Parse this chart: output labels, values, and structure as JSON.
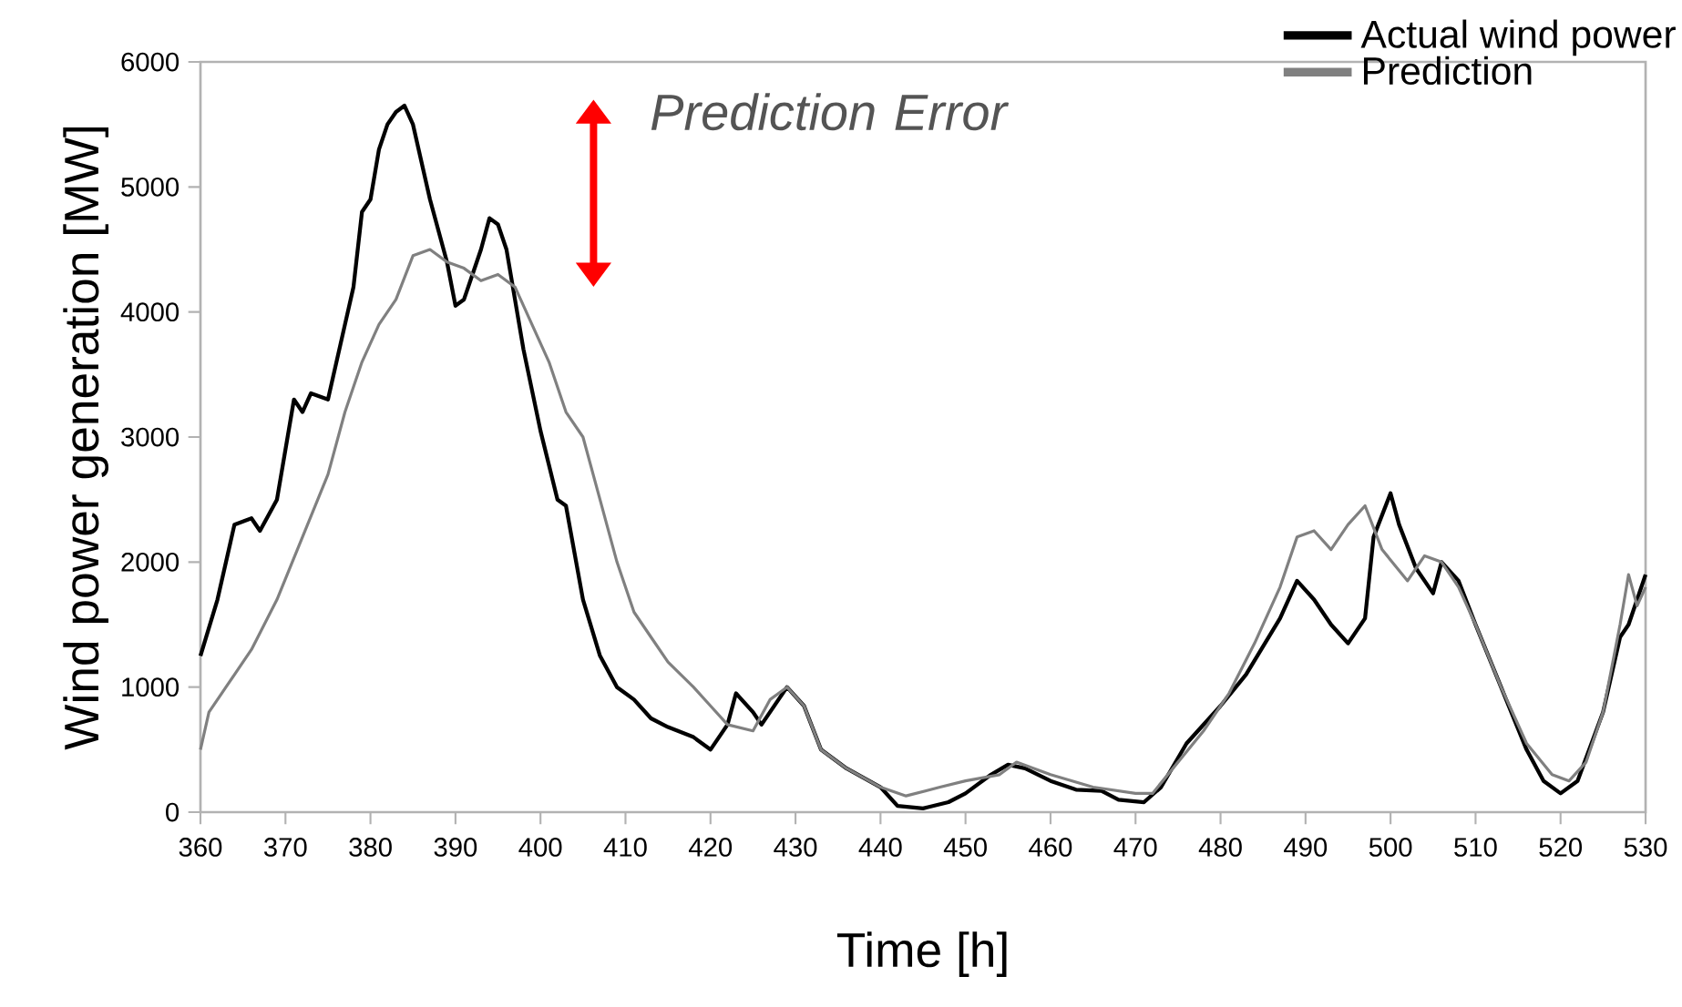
{
  "chart_data": {
    "type": "line",
    "xlabel": "Time [h]",
    "ylabel": "Wind power generation [MW]",
    "xlim": [
      360,
      530
    ],
    "ylim": [
      0,
      6000
    ],
    "xticks": [
      360,
      370,
      380,
      390,
      400,
      410,
      420,
      430,
      440,
      450,
      460,
      470,
      480,
      490,
      500,
      510,
      520,
      530
    ],
    "yticks": [
      0,
      1000,
      2000,
      3000,
      4000,
      5000,
      6000
    ],
    "grid": false,
    "legend": "top right",
    "annotations": [
      "Prediction Error"
    ],
    "series": [
      {
        "name": "Actual wind power",
        "color": "#000000",
        "x": [
          360,
          362,
          364,
          366,
          367,
          369,
          371,
          372,
          373,
          375,
          377,
          378,
          379,
          380,
          381,
          382,
          383,
          384,
          385,
          387,
          389,
          390,
          391,
          392,
          393,
          394,
          395,
          396,
          398,
          400,
          402,
          403,
          405,
          407,
          409,
          411,
          413,
          415,
          418,
          420,
          422,
          423,
          425,
          426,
          428,
          429,
          431,
          433,
          436,
          440,
          442,
          445,
          448,
          450,
          453,
          455,
          457,
          460,
          463,
          466,
          468,
          471,
          473,
          476,
          480,
          483,
          487,
          489,
          491,
          493,
          495,
          497,
          498,
          500,
          501,
          503,
          504,
          505,
          506,
          508,
          510,
          513,
          516,
          518,
          520,
          522,
          525,
          527,
          528,
          530
        ],
        "values": [
          1250,
          1700,
          2300,
          2350,
          2250,
          2500,
          3300,
          3200,
          3350,
          3300,
          3900,
          4200,
          4800,
          4900,
          5300,
          5500,
          5600,
          5650,
          5500,
          4900,
          4400,
          4050,
          4100,
          4300,
          4500,
          4750,
          4700,
          4500,
          3700,
          3050,
          2500,
          2450,
          1700,
          1250,
          1000,
          900,
          750,
          680,
          600,
          500,
          700,
          950,
          800,
          700,
          900,
          1000,
          850,
          500,
          350,
          200,
          50,
          30,
          80,
          150,
          300,
          380,
          350,
          250,
          180,
          170,
          100,
          80,
          200,
          550,
          850,
          1100,
          1550,
          1850,
          1700,
          1500,
          1350,
          1550,
          2200,
          2550,
          2300,
          1950,
          1850,
          1750,
          2000,
          1850,
          1500,
          1000,
          500,
          250,
          150,
          250,
          800,
          1400,
          1500,
          1900
        ]
      },
      {
        "name": "Prediction",
        "color": "#808080",
        "x": [
          360,
          361,
          363,
          366,
          369,
          372,
          375,
          377,
          379,
          381,
          383,
          385,
          387,
          389,
          391,
          393,
          395,
          397,
          399,
          401,
          403,
          405,
          407,
          409,
          411,
          413,
          415,
          418,
          420,
          422,
          425,
          427,
          429,
          431,
          433,
          436,
          440,
          443,
          447,
          450,
          454,
          456,
          460,
          465,
          470,
          472,
          475,
          478,
          481,
          484,
          487,
          489,
          491,
          493,
          495,
          497,
          499,
          502,
          504,
          506,
          508,
          510,
          513,
          516,
          519,
          521,
          523,
          525,
          527,
          528,
          529,
          530
        ],
        "values": [
          500,
          800,
          1000,
          1300,
          1700,
          2200,
          2700,
          3200,
          3600,
          3900,
          4100,
          4450,
          4500,
          4400,
          4350,
          4250,
          4300,
          4200,
          3900,
          3600,
          3200,
          3000,
          2500,
          2000,
          1600,
          1400,
          1200,
          1000,
          850,
          700,
          650,
          900,
          1000,
          850,
          500,
          350,
          200,
          130,
          200,
          250,
          300,
          400,
          300,
          200,
          150,
          150,
          400,
          650,
          950,
          1350,
          1800,
          2200,
          2250,
          2100,
          2300,
          2450,
          2100,
          1850,
          2050,
          2000,
          1800,
          1500,
          1000,
          550,
          300,
          250,
          400,
          800,
          1500,
          1900,
          1650,
          1800
        ]
      }
    ]
  }
}
